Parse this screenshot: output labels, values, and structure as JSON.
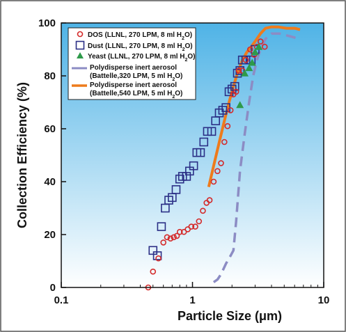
{
  "chart_data": {
    "type": "scatter",
    "title": "",
    "xlabel": "Particle Size (μm)",
    "ylabel": "Collection Efficiency (%)",
    "xscale": "log",
    "xlim": [
      0.1,
      10
    ],
    "ylim": [
      0,
      100
    ],
    "x_ticks": [
      "0.1",
      "1",
      "10"
    ],
    "y_ticks": [
      "0",
      "20",
      "40",
      "60",
      "80",
      "100"
    ],
    "grid": false,
    "legend_position": "top-left",
    "colors": {
      "plot_bg_top": "#4fb3e6",
      "plot_bg_bottom": "#ffffff",
      "dos": "#d42a2a",
      "dust": "#2b2f86",
      "yeast": "#2e9a4a",
      "battelle_320": "#8c8cc4",
      "battelle_540": "#ee7b1c"
    },
    "series": [
      {
        "name": "DOS (LLNL, 270 LPM, 8 ml H2O)",
        "marker": "circle",
        "x": [
          0.46,
          0.5,
          0.55,
          0.6,
          0.64,
          0.68,
          0.72,
          0.76,
          0.8,
          0.86,
          0.92,
          0.98,
          1.05,
          1.12,
          1.2,
          1.28,
          1.35,
          1.45,
          1.55,
          1.65,
          1.75,
          1.85,
          1.95,
          2.05,
          2.15,
          2.25,
          2.4,
          2.55,
          2.75,
          2.95,
          3.1,
          3.3,
          3.55
        ],
        "y": [
          0,
          6,
          11,
          17,
          19,
          18.5,
          19,
          19.5,
          21,
          21,
          22,
          23,
          23,
          25,
          29,
          32,
          33,
          40,
          44,
          47,
          55,
          61,
          67,
          73,
          74,
          82,
          82,
          86,
          90,
          88,
          91,
          93,
          91
        ]
      },
      {
        "name": "Dust (LLNL, 270 LPM, 8 ml H2O)",
        "marker": "square",
        "x": [
          0.5,
          0.54,
          0.58,
          0.62,
          0.66,
          0.7,
          0.75,
          0.8,
          0.84,
          0.9,
          0.95,
          1.02,
          1.08,
          1.15,
          1.22,
          1.3,
          1.4,
          1.5,
          1.6,
          1.7,
          1.8,
          1.9,
          2.0,
          2.1,
          2.2,
          2.3,
          2.4,
          2.55,
          2.8,
          3.0
        ],
        "y": [
          14,
          12,
          23,
          30,
          33,
          34,
          37,
          41,
          42,
          42,
          44,
          46,
          51,
          51,
          55,
          59,
          59,
          63,
          66,
          67,
          68,
          74,
          75,
          76,
          81,
          82,
          86,
          86,
          86,
          90
        ]
      },
      {
        "name": "Yeast (LLNL, 270 LPM, 8 ml H2O)",
        "marker": "triangle",
        "x": [
          2.3,
          2.5,
          2.7,
          2.85,
          3.0,
          3.2
        ],
        "y": [
          69,
          81,
          83,
          85,
          89,
          91
        ]
      },
      {
        "name": "Polydisperse inert aerosol (Battelle,320 LPM, 5 ml H2O)",
        "marker": "dashed-line",
        "x": [
          1.45,
          1.55,
          1.65,
          1.8,
          1.95,
          2.05,
          2.15,
          2.3,
          2.5,
          2.7,
          2.9,
          3.1,
          3.3,
          3.6,
          4.0,
          4.6,
          5.5,
          6.5
        ],
        "y": [
          2,
          3,
          5,
          9,
          12,
          14,
          25,
          44,
          58,
          70,
          80,
          86,
          90,
          94,
          96,
          96,
          95,
          94
        ]
      },
      {
        "name": "Polydisperse inert aerosol (Battelle,540 LPM, 5 ml H2O)",
        "marker": "solid-line",
        "x": [
          1.33,
          1.45,
          1.6,
          1.75,
          1.9,
          2.05,
          2.2,
          2.4,
          2.6,
          2.8,
          3.0,
          3.3,
          3.6,
          4.0,
          4.5,
          5.2,
          6.0,
          6.6
        ],
        "y": [
          38,
          46,
          55,
          63,
          70,
          76,
          81,
          86,
          89,
          91,
          93,
          96,
          98,
          98.5,
          98.5,
          98,
          98,
          97.5
        ]
      }
    ]
  },
  "legend": {
    "dos_main": "DOS (LLNL, 270 LPM, 8 ml H",
    "dust_main": "Dust (LLNL, 270 LPM, 8 ml H",
    "yeast_main": "Yeast (LLNL, 270 LPM, 8 ml H",
    "b320_line1": "Polydisperse inert aerosol",
    "b320_main": "(Battelle,320 LPM, 5 ml H",
    "b540_line1": "Polydisperse inert aerosol",
    "b540_main": "(Battelle,540 LPM, 5 ml H",
    "sub2": "2",
    "o_close": "O)",
    "o_close_paren": "O)"
  }
}
